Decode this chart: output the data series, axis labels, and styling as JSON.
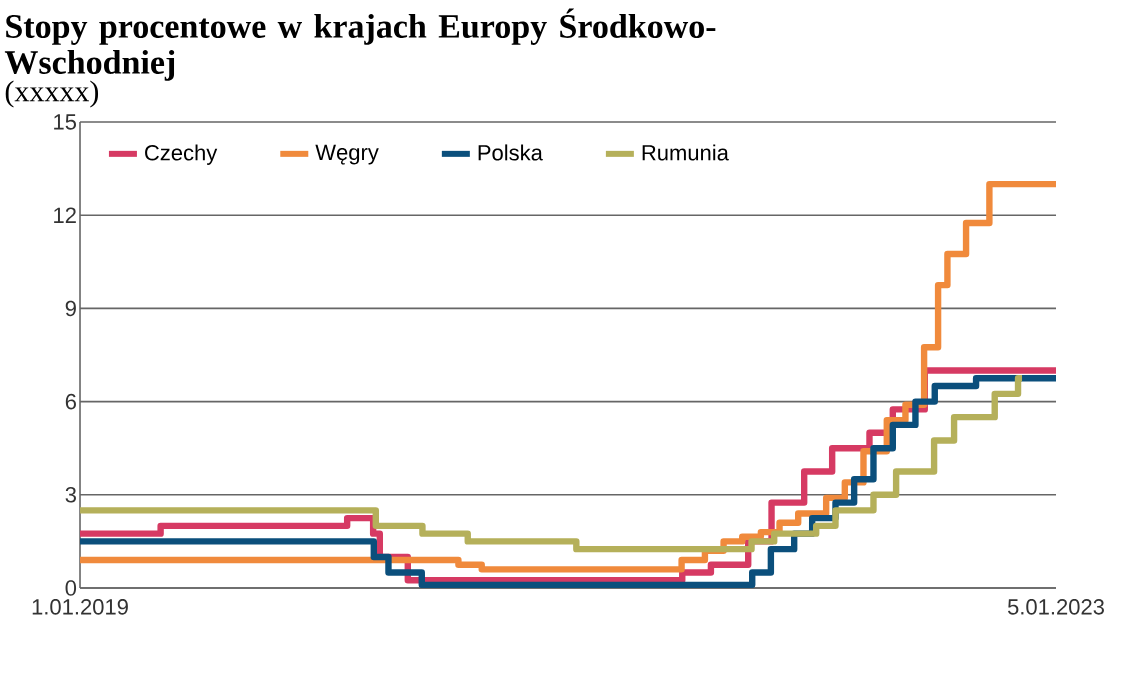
{
  "chart_data": {
    "type": "step",
    "title": "Stopy procentowe w krajach Europy Środkowo-Wschodniej",
    "subtitle": "(xxxxx)",
    "xlim": [
      "2019-01-01",
      "2023-01-05"
    ],
    "xticks": [
      {
        "value": "2019-01-01",
        "label": "1.01.2019"
      },
      {
        "value": "2023-01-05",
        "label": "5.01.2023"
      }
    ],
    "ylim": [
      0,
      15
    ],
    "yticks": [
      0,
      3,
      6,
      9,
      12,
      15
    ],
    "grid": "y",
    "legend": "top",
    "series": [
      {
        "name": "Czechy",
        "color": "#d63a63",
        "x": [
          "2019-01-01",
          "2019-05-02",
          "2020-02-06",
          "2020-03-16",
          "2020-03-26",
          "2020-05-07",
          "2021-06-23",
          "2021-08-05",
          "2021-09-30",
          "2021-11-04",
          "2021-12-23",
          "2022-02-03",
          "2022-03-31",
          "2022-05-05",
          "2022-06-22",
          "2023-01-05"
        ],
        "values": [
          1.75,
          2.0,
          2.25,
          1.75,
          1.0,
          0.25,
          0.5,
          0.75,
          1.5,
          2.75,
          3.75,
          4.5,
          5.0,
          5.75,
          7.0,
          7.0
        ]
      },
      {
        "name": "Węgry",
        "color": "#f08a3c",
        "x": [
          "2019-01-01",
          "2020-07-22",
          "2020-08-26",
          "2021-06-22",
          "2021-07-27",
          "2021-08-24",
          "2021-09-21",
          "2021-10-19",
          "2021-11-16",
          "2021-12-14",
          "2022-01-25",
          "2022-02-22",
          "2022-03-22",
          "2022-04-26",
          "2022-05-24",
          "2022-06-21",
          "2022-07-12",
          "2022-07-26",
          "2022-08-23",
          "2022-09-27",
          "2023-01-05"
        ],
        "values": [
          0.9,
          0.75,
          0.6,
          0.9,
          1.2,
          1.5,
          1.65,
          1.8,
          2.1,
          2.4,
          2.9,
          3.4,
          4.4,
          5.4,
          5.9,
          7.75,
          9.75,
          10.75,
          11.75,
          13.0,
          13.0
        ]
      },
      {
        "name": "Polska",
        "color": "#0b4f7c",
        "x": [
          "2019-01-01",
          "2020-03-17",
          "2020-04-08",
          "2020-05-28",
          "2021-10-06",
          "2021-11-03",
          "2021-12-08",
          "2022-01-04",
          "2022-02-08",
          "2022-03-08",
          "2022-04-06",
          "2022-05-05",
          "2022-06-08",
          "2022-07-07",
          "2022-09-07",
          "2023-01-05"
        ],
        "values": [
          1.5,
          1.0,
          0.5,
          0.1,
          0.5,
          1.25,
          1.75,
          2.25,
          2.75,
          3.5,
          4.5,
          5.25,
          6.0,
          6.5,
          6.75,
          6.75
        ]
      },
      {
        "name": "Rumunia",
        "color": "#b5b05a",
        "x": [
          "2019-01-01",
          "2020-03-20",
          "2020-05-29",
          "2020-08-05",
          "2021-01-15",
          "2021-10-05",
          "2021-11-08",
          "2022-01-10",
          "2022-02-08",
          "2022-04-06",
          "2022-05-10",
          "2022-07-06",
          "2022-08-05",
          "2022-10-05",
          "2022-11-09",
          "2022-11-15"
        ],
        "values": [
          2.5,
          2.0,
          1.75,
          1.5,
          1.25,
          1.5,
          1.75,
          2.0,
          2.5,
          3.0,
          3.75,
          4.75,
          5.5,
          6.25,
          6.75,
          6.75
        ]
      }
    ]
  }
}
